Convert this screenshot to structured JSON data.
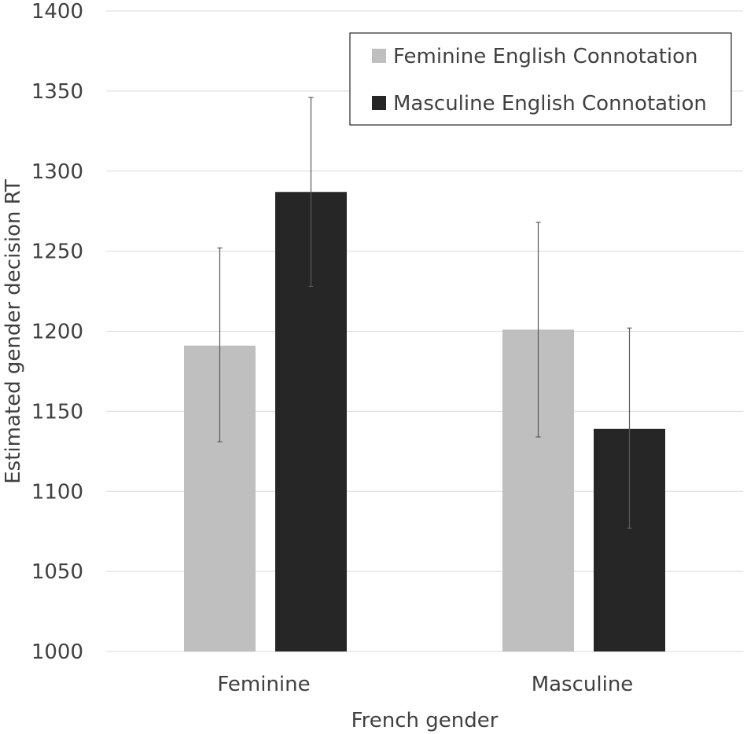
{
  "chart_data": {
    "type": "bar",
    "title": "",
    "xlabel": "French gender",
    "ylabel": "Estimated gender decision RT",
    "categories": [
      "Feminine",
      "Masculine"
    ],
    "ylim": [
      1000,
      1400
    ],
    "yticks": [
      1000,
      1050,
      1100,
      1150,
      1200,
      1250,
      1300,
      1350,
      1400
    ],
    "grid": true,
    "legend_position": "top-right",
    "series": [
      {
        "name": "Feminine English Connotation",
        "color": "#bfbfbf",
        "values": [
          1191,
          1201
        ],
        "error_low": [
          1131,
          1134
        ],
        "error_high": [
          1252,
          1268
        ]
      },
      {
        "name": "Masculine English Connotation",
        "color": "#262626",
        "values": [
          1287,
          1139
        ],
        "error_low": [
          1228,
          1077
        ],
        "error_high": [
          1346,
          1202
        ]
      }
    ]
  }
}
